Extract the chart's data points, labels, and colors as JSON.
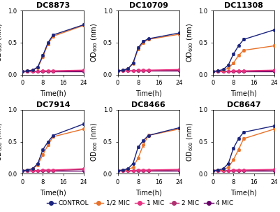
{
  "titles": [
    "DC8873",
    "DC10709",
    "DC11308",
    "DC7914",
    "DC8466",
    "DC8647"
  ],
  "time": [
    0,
    2,
    4,
    6,
    8,
    10,
    12,
    24
  ],
  "series_labels": [
    "CONTROL",
    "1/2 MIC",
    "1 MIC",
    "2 MIC",
    "4 MIC"
  ],
  "series_colors": [
    "#1a237e",
    "#e8722a",
    "#e83080",
    "#b03070",
    "#6a006a"
  ],
  "ylim": [
    0,
    1.0
  ],
  "xlim": [
    0,
    24
  ],
  "xticks": [
    0,
    8,
    16,
    24
  ],
  "yticks": [
    0.0,
    0.5,
    1.0
  ],
  "xlabel": "Time(h)",
  "ylabel": "OD$_{600}$ (nm)",
  "data": {
    "DC8873": {
      "CONTROL": [
        0.05,
        0.06,
        0.07,
        0.12,
        0.3,
        0.5,
        0.62,
        0.78
      ],
      "1/2 MIC": [
        0.05,
        0.06,
        0.07,
        0.11,
        0.28,
        0.48,
        0.6,
        0.77
      ],
      "1 MIC": [
        0.05,
        0.05,
        0.05,
        0.05,
        0.06,
        0.06,
        0.06,
        0.07
      ],
      "2 MIC": [
        0.05,
        0.05,
        0.05,
        0.05,
        0.05,
        0.05,
        0.05,
        0.06
      ],
      "4 MIC": [
        0.05,
        0.05,
        0.05,
        0.05,
        0.05,
        0.05,
        0.05,
        0.05
      ]
    },
    "DC10709": {
      "CONTROL": [
        0.06,
        0.07,
        0.09,
        0.18,
        0.42,
        0.52,
        0.56,
        0.65
      ],
      "1/2 MIC": [
        0.06,
        0.07,
        0.09,
        0.17,
        0.4,
        0.5,
        0.55,
        0.63
      ],
      "1 MIC": [
        0.06,
        0.06,
        0.06,
        0.06,
        0.07,
        0.07,
        0.07,
        0.08
      ],
      "2 MIC": [
        0.06,
        0.06,
        0.06,
        0.06,
        0.06,
        0.06,
        0.06,
        0.07
      ],
      "4 MIC": [
        0.06,
        0.06,
        0.06,
        0.06,
        0.06,
        0.06,
        0.06,
        0.06
      ]
    },
    "DC11308": {
      "CONTROL": [
        0.05,
        0.06,
        0.08,
        0.15,
        0.32,
        0.45,
        0.55,
        0.7
      ],
      "1/2 MIC": [
        0.05,
        0.06,
        0.07,
        0.1,
        0.18,
        0.3,
        0.38,
        0.45
      ],
      "1 MIC": [
        0.05,
        0.05,
        0.05,
        0.05,
        0.06,
        0.06,
        0.06,
        0.07
      ],
      "2 MIC": [
        0.05,
        0.05,
        0.05,
        0.05,
        0.05,
        0.05,
        0.05,
        0.06
      ],
      "4 MIC": [
        0.05,
        0.05,
        0.05,
        0.05,
        0.05,
        0.05,
        0.05,
        0.05
      ]
    },
    "DC7914": {
      "CONTROL": [
        0.05,
        0.06,
        0.08,
        0.16,
        0.38,
        0.5,
        0.6,
        0.78
      ],
      "1/2 MIC": [
        0.05,
        0.06,
        0.08,
        0.14,
        0.3,
        0.45,
        0.58,
        0.7
      ],
      "1 MIC": [
        0.05,
        0.05,
        0.05,
        0.05,
        0.06,
        0.06,
        0.06,
        0.08
      ],
      "2 MIC": [
        0.05,
        0.05,
        0.05,
        0.05,
        0.05,
        0.05,
        0.05,
        0.07
      ],
      "4 MIC": [
        0.05,
        0.05,
        0.05,
        0.05,
        0.05,
        0.05,
        0.05,
        0.05
      ]
    },
    "DC8466": {
      "CONTROL": [
        0.05,
        0.06,
        0.08,
        0.16,
        0.42,
        0.52,
        0.6,
        0.72
      ],
      "1/2 MIC": [
        0.05,
        0.06,
        0.07,
        0.1,
        0.25,
        0.45,
        0.6,
        0.7
      ],
      "1 MIC": [
        0.05,
        0.05,
        0.05,
        0.05,
        0.06,
        0.06,
        0.06,
        0.07
      ],
      "2 MIC": [
        0.05,
        0.05,
        0.05,
        0.05,
        0.05,
        0.05,
        0.05,
        0.06
      ],
      "4 MIC": [
        0.05,
        0.05,
        0.05,
        0.05,
        0.05,
        0.05,
        0.05,
        0.05
      ]
    },
    "DC8647": {
      "CONTROL": [
        0.05,
        0.06,
        0.08,
        0.16,
        0.4,
        0.55,
        0.65,
        0.75
      ],
      "1/2 MIC": [
        0.05,
        0.06,
        0.07,
        0.1,
        0.22,
        0.38,
        0.55,
        0.7
      ],
      "1 MIC": [
        0.05,
        0.05,
        0.05,
        0.05,
        0.06,
        0.06,
        0.06,
        0.07
      ],
      "2 MIC": [
        0.05,
        0.05,
        0.05,
        0.05,
        0.05,
        0.05,
        0.05,
        0.06
      ],
      "4 MIC": [
        0.05,
        0.05,
        0.05,
        0.05,
        0.05,
        0.05,
        0.05,
        0.05
      ]
    }
  },
  "error": {
    "DC8873": {
      "CONTROL": [
        0.005,
        0.005,
        0.005,
        0.01,
        0.02,
        0.02,
        0.02,
        0.02
      ],
      "1/2 MIC": [
        0.005,
        0.005,
        0.005,
        0.01,
        0.02,
        0.02,
        0.02,
        0.02
      ],
      "1 MIC": [
        0.002,
        0.002,
        0.002,
        0.002,
        0.003,
        0.003,
        0.003,
        0.005
      ],
      "2 MIC": [
        0.002,
        0.002,
        0.002,
        0.002,
        0.002,
        0.002,
        0.002,
        0.003
      ],
      "4 MIC": [
        0.002,
        0.002,
        0.002,
        0.002,
        0.002,
        0.002,
        0.002,
        0.002
      ]
    },
    "DC10709": {
      "CONTROL": [
        0.005,
        0.005,
        0.007,
        0.01,
        0.02,
        0.02,
        0.02,
        0.02
      ],
      "1/2 MIC": [
        0.005,
        0.005,
        0.007,
        0.01,
        0.02,
        0.02,
        0.02,
        0.02
      ],
      "1 MIC": [
        0.002,
        0.002,
        0.002,
        0.002,
        0.003,
        0.003,
        0.003,
        0.005
      ],
      "2 MIC": [
        0.002,
        0.002,
        0.002,
        0.002,
        0.002,
        0.002,
        0.002,
        0.003
      ],
      "4 MIC": [
        0.002,
        0.002,
        0.002,
        0.002,
        0.002,
        0.002,
        0.002,
        0.002
      ]
    },
    "DC11308": {
      "CONTROL": [
        0.005,
        0.005,
        0.007,
        0.01,
        0.02,
        0.02,
        0.02,
        0.02
      ],
      "1/2 MIC": [
        0.005,
        0.005,
        0.007,
        0.01,
        0.015,
        0.02,
        0.02,
        0.025
      ],
      "1 MIC": [
        0.002,
        0.002,
        0.002,
        0.002,
        0.003,
        0.003,
        0.003,
        0.005
      ],
      "2 MIC": [
        0.002,
        0.002,
        0.002,
        0.002,
        0.002,
        0.002,
        0.002,
        0.003
      ],
      "4 MIC": [
        0.002,
        0.002,
        0.002,
        0.002,
        0.002,
        0.002,
        0.002,
        0.002
      ]
    },
    "DC7914": {
      "CONTROL": [
        0.005,
        0.005,
        0.007,
        0.01,
        0.02,
        0.02,
        0.02,
        0.02
      ],
      "1/2 MIC": [
        0.005,
        0.005,
        0.007,
        0.01,
        0.02,
        0.02,
        0.02,
        0.02
      ],
      "1 MIC": [
        0.002,
        0.002,
        0.002,
        0.002,
        0.003,
        0.003,
        0.003,
        0.005
      ],
      "2 MIC": [
        0.002,
        0.002,
        0.002,
        0.002,
        0.002,
        0.002,
        0.002,
        0.003
      ],
      "4 MIC": [
        0.002,
        0.002,
        0.002,
        0.002,
        0.002,
        0.002,
        0.002,
        0.002
      ]
    },
    "DC8466": {
      "CONTROL": [
        0.005,
        0.005,
        0.007,
        0.01,
        0.02,
        0.02,
        0.02,
        0.02
      ],
      "1/2 MIC": [
        0.005,
        0.005,
        0.007,
        0.01,
        0.02,
        0.025,
        0.025,
        0.025
      ],
      "1 MIC": [
        0.002,
        0.002,
        0.002,
        0.002,
        0.003,
        0.003,
        0.003,
        0.005
      ],
      "2 MIC": [
        0.002,
        0.002,
        0.002,
        0.002,
        0.002,
        0.002,
        0.002,
        0.003
      ],
      "4 MIC": [
        0.002,
        0.002,
        0.002,
        0.002,
        0.002,
        0.002,
        0.002,
        0.002
      ]
    },
    "DC8647": {
      "CONTROL": [
        0.005,
        0.005,
        0.007,
        0.01,
        0.02,
        0.02,
        0.02,
        0.02
      ],
      "1/2 MIC": [
        0.005,
        0.005,
        0.007,
        0.01,
        0.02,
        0.025,
        0.025,
        0.025
      ],
      "1 MIC": [
        0.002,
        0.002,
        0.002,
        0.002,
        0.003,
        0.003,
        0.003,
        0.005
      ],
      "2 MIC": [
        0.002,
        0.002,
        0.002,
        0.002,
        0.002,
        0.002,
        0.002,
        0.003
      ],
      "4 MIC": [
        0.002,
        0.002,
        0.002,
        0.002,
        0.002,
        0.002,
        0.002,
        0.002
      ]
    }
  },
  "bg_color": "#ffffff",
  "legend_fontsize": 6.5,
  "tick_fontsize": 6,
  "label_fontsize": 7,
  "title_fontsize": 8,
  "linewidth": 1.0,
  "markersize": 3
}
